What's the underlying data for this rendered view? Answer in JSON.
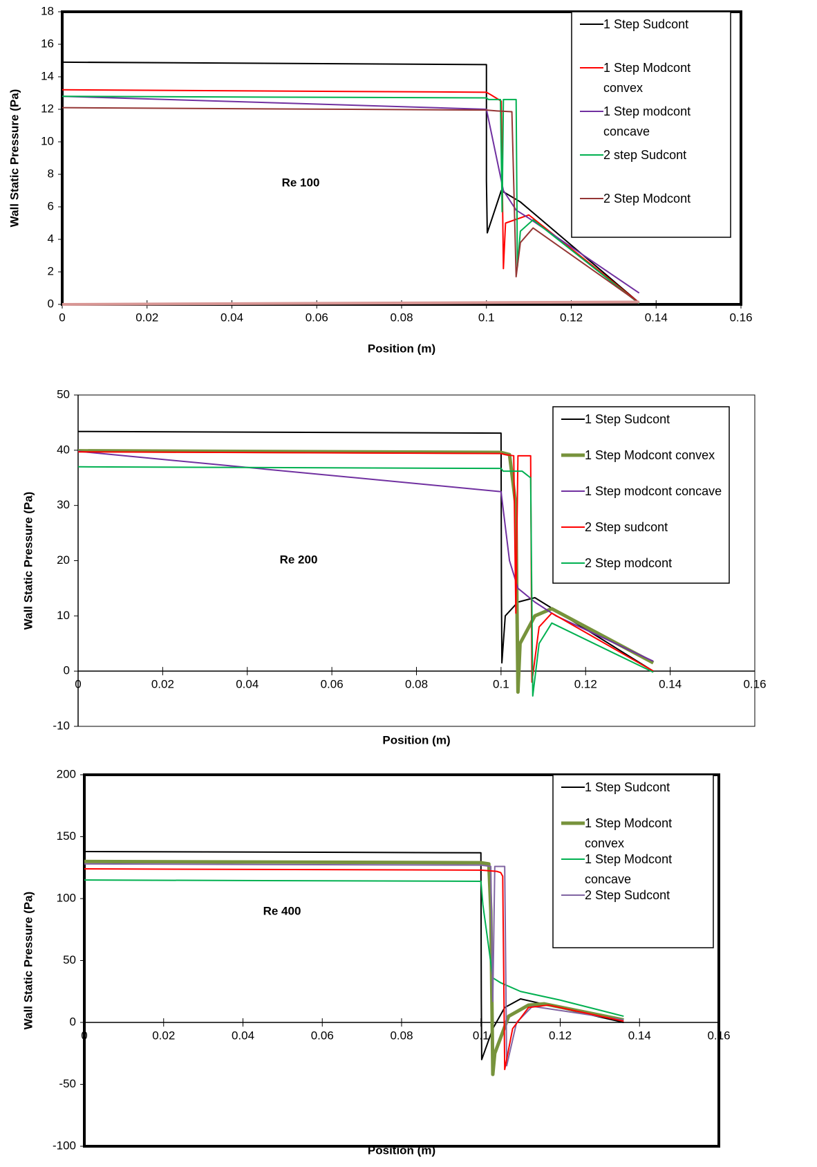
{
  "chart_data": [
    {
      "type": "line",
      "annotation": "Re 100",
      "x_label": "Position (m)",
      "y_label": "Wall Static Pressure (Pa)",
      "xlim": [
        0,
        0.16
      ],
      "ylim": [
        0,
        18
      ],
      "xticks": [
        0,
        0.02,
        0.04,
        0.06,
        0.08,
        0.1,
        0.12,
        0.14,
        0.16
      ],
      "yticks": [
        0,
        2,
        4,
        6,
        8,
        10,
        12,
        14,
        16,
        18
      ],
      "legend": "upper right",
      "series": [
        {
          "name": "1 Step Sudcont",
          "color": "#000000",
          "width": 2,
          "x": [
            0,
            0.1,
            0.1,
            0.1002,
            0.1035,
            0.108,
            0.136
          ],
          "values": [
            14.9,
            14.75,
            7.6,
            4.4,
            7,
            6.3,
            0.1
          ]
        },
        {
          "name": "1 Step Modcont convex",
          "color": "#ff0000",
          "width": 2,
          "x": [
            0,
            0.1,
            0.101,
            0.1035,
            0.104,
            0.1045,
            0.11,
            0.136
          ],
          "values": [
            13.2,
            13.05,
            12.9,
            12.5,
            2.2,
            5,
            5.5,
            0.1
          ]
        },
        {
          "name": "1 Step modcont concave",
          "color": "#7030a0",
          "width": 2,
          "x": [
            0,
            0.1,
            0.104,
            0.107,
            0.11,
            0.136
          ],
          "values": [
            12.8,
            12,
            7,
            5.8,
            5.3,
            0.7
          ]
        },
        {
          "name": "2 step Sudcont",
          "color": "#00b050",
          "width": 2,
          "x": [
            0,
            0.1,
            0.1005,
            0.1033,
            0.1037,
            0.104,
            0.107,
            0.1073,
            0.108,
            0.111,
            0.136
          ],
          "values": [
            12.8,
            12.7,
            12.6,
            12.6,
            5.7,
            12.6,
            12.6,
            2.3,
            4.5,
            5.2,
            0.05
          ]
        },
        {
          "name": "2 Step Modcont",
          "color": "#943634",
          "width": 2,
          "x": [
            0,
            0.1,
            0.1025,
            0.106,
            0.107,
            0.108,
            0.111,
            0.136
          ],
          "values": [
            12.1,
            11.95,
            11.9,
            11.85,
            1.7,
            3.8,
            4.7,
            0.1
          ]
        },
        {
          "color": "#d99795",
          "width": 4,
          "x": [
            0,
            0.136
          ],
          "values": [
            0,
            0.15
          ]
        }
      ]
    },
    {
      "type": "line",
      "annotation": "Re 200",
      "x_label": "Position (m)",
      "y_label": "Wall Static Pressure (Pa)",
      "xlim": [
        0,
        0.16
      ],
      "ylim": [
        -10,
        50
      ],
      "xticks": [
        0,
        0.02,
        0.04,
        0.06,
        0.08,
        0.1,
        0.12,
        0.14,
        0.16
      ],
      "yticks": [
        -10,
        0,
        10,
        20,
        30,
        40,
        50
      ],
      "legend": "upper right",
      "series": [
        {
          "name": "1 Step Sudcont",
          "color": "#000000",
          "width": 2,
          "x": [
            0,
            0.1,
            0.1001,
            0.1002,
            0.101,
            0.104,
            0.108,
            0.136
          ],
          "values": [
            43.4,
            43.1,
            14,
            1.5,
            10,
            12.5,
            13.3,
            0
          ]
        },
        {
          "name": "1 Step Modcont convex",
          "color": "#77933c",
          "width": 5,
          "x": [
            0,
            0.1,
            0.102,
            0.1035,
            0.104,
            0.1045,
            0.108,
            0.112,
            0.136
          ],
          "values": [
            39.9,
            39.6,
            39.2,
            30,
            -3.8,
            5,
            10,
            11.3,
            1.5
          ]
        },
        {
          "name": "1 Step modcont concave",
          "color": "#7030a0",
          "width": 2,
          "x": [
            0,
            0.1,
            0.102,
            0.104,
            0.108,
            0.113,
            0.136
          ],
          "values": [
            39.8,
            32.5,
            20,
            15,
            12.5,
            10,
            1.8
          ]
        },
        {
          "name": "2 Step sudcont",
          "color": "#ff0000",
          "width": 2,
          "x": [
            0,
            0.1,
            0.101,
            0.103,
            0.1035,
            0.104,
            0.107,
            0.1073,
            0.109,
            0.112,
            0.136
          ],
          "values": [
            39.7,
            39.4,
            39.2,
            39,
            10.5,
            39,
            39,
            -2,
            8,
            10.5,
            0
          ]
        },
        {
          "name": "2 Step modcont",
          "color": "#00b050",
          "width": 2,
          "x": [
            0,
            0.1,
            0.1005,
            0.105,
            0.107,
            0.1075,
            0.109,
            0.112,
            0.136
          ],
          "values": [
            37,
            36.7,
            36.2,
            36.2,
            35,
            -4.5,
            5,
            8.7,
            -0.2
          ]
        }
      ]
    },
    {
      "type": "line",
      "annotation": "Re 400",
      "x_label": "Position (m)",
      "y_label": "Wall Static Pressure (Pa)",
      "xlim": [
        0,
        0.16
      ],
      "ylim": [
        -100,
        200
      ],
      "xticks": [
        0,
        0.02,
        0.04,
        0.06,
        0.08,
        0.1,
        0.12,
        0.14,
        0.16
      ],
      "yticks": [
        -100,
        -50,
        0,
        50,
        100,
        150,
        200
      ],
      "legend": "upper right",
      "series": [
        {
          "name": "1 Step Sudcont",
          "color": "#000000",
          "width": 2,
          "x": [
            0,
            0.1,
            0.1001,
            0.1002,
            0.103,
            0.106,
            0.11,
            0.136
          ],
          "values": [
            138,
            137,
            20,
            -30,
            -5,
            12,
            19,
            0
          ]
        },
        {
          "name": "1 Step Modcont convex",
          "color": "#77933c",
          "width": 5,
          "x": [
            0,
            0.1,
            0.102,
            0.1025,
            0.103,
            0.1035,
            0.107,
            0.112,
            0.116,
            0.136
          ],
          "values": [
            130,
            129,
            128,
            90,
            -42,
            -25,
            5,
            14,
            15,
            2
          ]
        },
        {
          "name": "1 Step Modcont concave",
          "color": "#00b050",
          "width": 2,
          "x": [
            0,
            0.1,
            0.1005,
            0.102,
            0.103,
            0.105,
            0.11,
            0.12,
            0.136
          ],
          "values": [
            115,
            114,
            95,
            60,
            36,
            32,
            25,
            18,
            5
          ]
        },
        {
          "name": "2 Step Sudcont",
          "color": "#8064a2",
          "width": 2,
          "x": [
            0,
            0.1,
            0.1025,
            0.103,
            0.1035,
            0.106,
            0.1065,
            0.109,
            0.113,
            0.136
          ],
          "values": [
            128,
            127,
            126,
            17,
            126,
            126,
            -35,
            0,
            13,
            2
          ]
        },
        {
          "color": "#ff0000",
          "width": 2,
          "x": [
            0,
            0.1,
            0.104,
            0.105,
            0.1055,
            0.106,
            0.108,
            0.112,
            0.117,
            0.136
          ],
          "values": [
            124,
            123,
            122,
            121,
            118,
            -38,
            -5,
            12,
            14,
            1
          ]
        }
      ]
    }
  ]
}
